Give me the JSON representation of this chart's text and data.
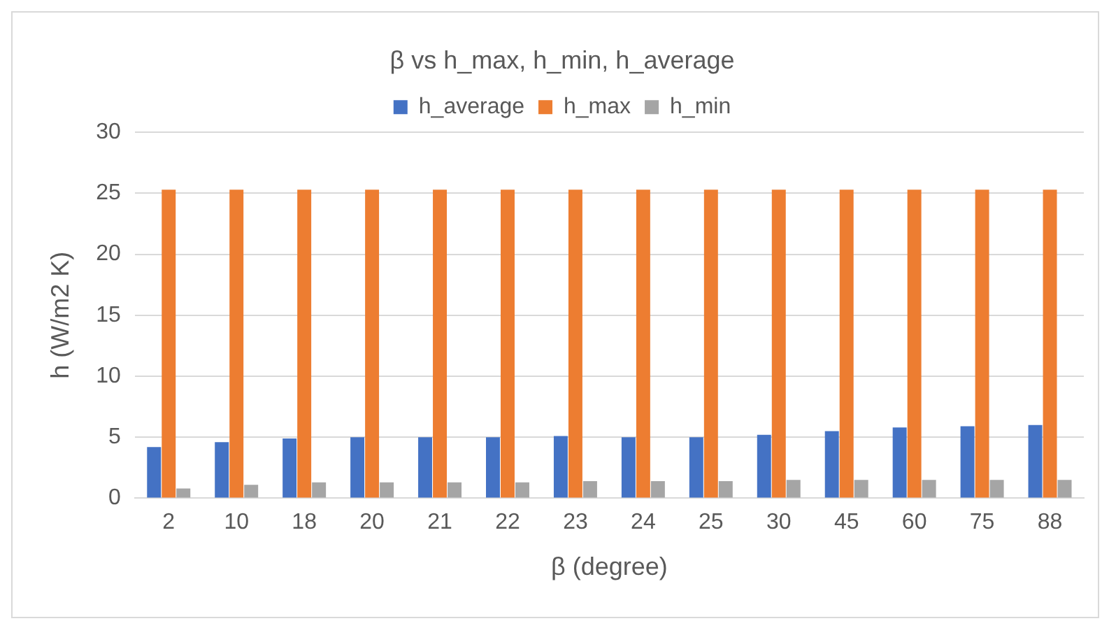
{
  "chart_data": {
    "type": "bar",
    "title": "β vs h_max, h_min, h_average",
    "xlabel": "β (degree)",
    "ylabel": "h (W/m2 K)",
    "categories": [
      "2",
      "10",
      "18",
      "20",
      "21",
      "22",
      "23",
      "24",
      "25",
      "30",
      "45",
      "60",
      "75",
      "88"
    ],
    "series": [
      {
        "name": "h_average",
        "color": "#4472c4",
        "values": [
          4.2,
          4.6,
          4.9,
          5.0,
          5.0,
          5.0,
          5.1,
          5.0,
          5.0,
          5.2,
          5.5,
          5.8,
          5.9,
          6.0
        ]
      },
      {
        "name": "h_max",
        "color": "#ed7d31",
        "values": [
          25.3,
          25.3,
          25.3,
          25.3,
          25.3,
          25.3,
          25.3,
          25.3,
          25.3,
          25.3,
          25.3,
          25.3,
          25.3,
          25.3
        ]
      },
      {
        "name": "h_min",
        "color": "#a5a5a5",
        "values": [
          0.8,
          1.1,
          1.3,
          1.3,
          1.3,
          1.3,
          1.4,
          1.4,
          1.4,
          1.5,
          1.5,
          1.5,
          1.5,
          1.5
        ]
      }
    ],
    "ylim": [
      0,
      30
    ],
    "yticks": [
      0,
      5,
      10,
      15,
      20,
      25,
      30
    ],
    "grid": "y",
    "legend": "top"
  }
}
